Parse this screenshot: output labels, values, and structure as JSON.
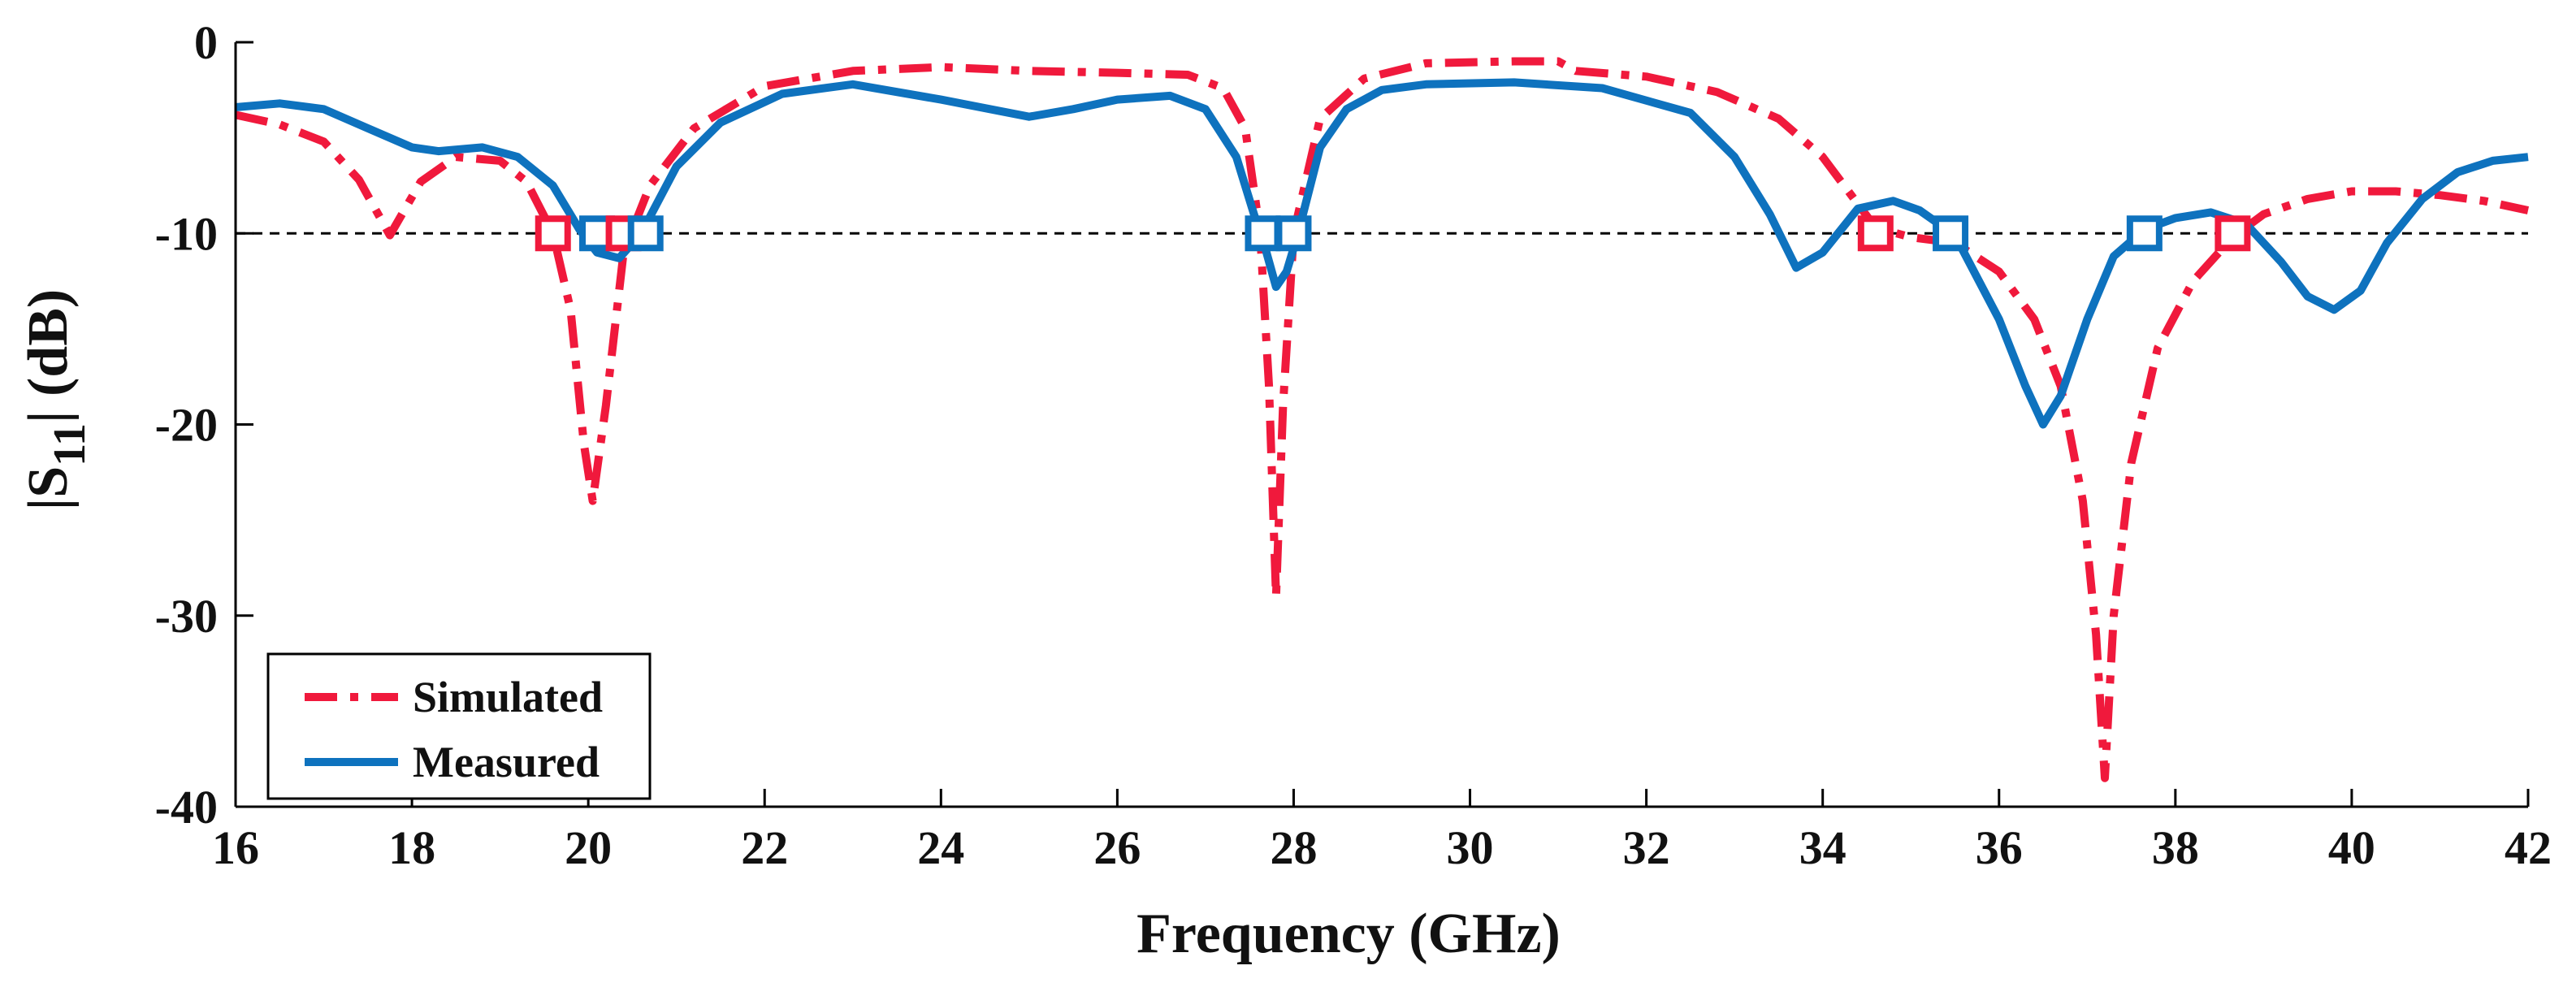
{
  "chart_data": {
    "type": "line",
    "xlabel": "Frequency (GHz)",
    "ylabel": {
      "pre": "|S",
      "sub": "11",
      "post": "| (dB)"
    },
    "xlim": [
      16,
      42
    ],
    "ylim": [
      -40,
      0
    ],
    "xticks": [
      16,
      18,
      20,
      22,
      24,
      26,
      28,
      30,
      32,
      34,
      36,
      38,
      40,
      42
    ],
    "yticks": [
      0,
      -10,
      -20,
      -30,
      -40
    ],
    "grid": false,
    "legend_position": "bottom-left",
    "reference_line": {
      "y": -10,
      "style": "dashed",
      "color": "#000000"
    },
    "series": [
      {
        "name": "Simulated",
        "color": "#F0193C",
        "style": "dash-dot",
        "x": [
          16,
          16.5,
          17,
          17.4,
          17.75,
          18.1,
          18.5,
          19,
          19.3,
          19.6,
          19.8,
          19.95,
          20.05,
          20.2,
          20.4,
          20.7,
          21.2,
          22,
          23,
          24,
          25,
          26,
          26.8,
          27.2,
          27.45,
          27.62,
          27.72,
          27.8,
          27.88,
          28,
          28.3,
          28.8,
          29.5,
          30.5,
          31,
          31.2,
          32,
          32.8,
          33.5,
          34,
          34.6,
          35,
          35.5,
          36,
          36.4,
          36.7,
          36.95,
          37.1,
          37.2,
          37.3,
          37.5,
          37.8,
          38.2,
          38.65,
          39,
          39.5,
          40,
          40.5,
          41,
          41.5,
          42
        ],
        "y": [
          -3.8,
          -4.3,
          -5.2,
          -7.2,
          -10.1,
          -7.3,
          -6,
          -6.2,
          -7.3,
          -10,
          -14,
          -21,
          -24,
          -19,
          -11,
          -7.5,
          -4.5,
          -2.3,
          -1.5,
          -1.3,
          -1.5,
          -1.6,
          -1.7,
          -2.4,
          -4.5,
          -10,
          -18,
          -29,
          -19,
          -10,
          -4,
          -1.9,
          -1.1,
          -1,
          -1,
          -1.5,
          -1.8,
          -2.6,
          -4,
          -6,
          -9.7,
          -10.2,
          -10.5,
          -12,
          -14.5,
          -18,
          -24,
          -31,
          -38.5,
          -30,
          -22,
          -16,
          -12.5,
          -10.2,
          -9,
          -8.2,
          -7.8,
          -7.8,
          -8,
          -8.3,
          -8.8
        ]
      },
      {
        "name": "Measured",
        "color": "#0E72BE",
        "style": "solid",
        "x": [
          16,
          16.5,
          17,
          17.5,
          18,
          18.3,
          18.8,
          19.2,
          19.6,
          19.9,
          20.1,
          20.35,
          20.6,
          21,
          21.5,
          22.2,
          23,
          24,
          25,
          25.5,
          26,
          26.6,
          27,
          27.35,
          27.55,
          27.68,
          27.8,
          27.92,
          28.05,
          28.3,
          28.6,
          29,
          29.5,
          30.5,
          31.5,
          32.5,
          33,
          33.4,
          33.7,
          34,
          34.4,
          34.8,
          35.1,
          35.5,
          36,
          36.3,
          36.5,
          36.7,
          37,
          37.3,
          37.65,
          38,
          38.4,
          38.8,
          39.2,
          39.5,
          39.8,
          40.1,
          40.4,
          40.8,
          41.2,
          41.6,
          42
        ],
        "y": [
          -3.4,
          -3.2,
          -3.5,
          -4.5,
          -5.5,
          -5.7,
          -5.5,
          -6,
          -7.5,
          -9.8,
          -11,
          -11.3,
          -10,
          -6.5,
          -4.2,
          -2.7,
          -2.2,
          -3,
          -3.9,
          -3.5,
          -3,
          -2.8,
          -3.5,
          -6,
          -9,
          -10.8,
          -12.8,
          -12,
          -10,
          -5.5,
          -3.5,
          -2.5,
          -2.2,
          -2.1,
          -2.4,
          -3.7,
          -6,
          -9,
          -11.8,
          -11,
          -8.7,
          -8.3,
          -8.8,
          -10.1,
          -14.5,
          -18,
          -20,
          -18.5,
          -14.5,
          -11.2,
          -9.8,
          -9.2,
          -8.9,
          -9.5,
          -11.5,
          -13.3,
          -14,
          -13,
          -10.5,
          -8.2,
          -6.8,
          -6.2,
          -6
        ]
      }
    ],
    "marker_points": [
      {
        "series": "Simulated",
        "x": 19.6,
        "y": -10
      },
      {
        "series": "Measured",
        "x": 20.1,
        "y": -10
      },
      {
        "series": "Simulated",
        "x": 20.4,
        "y": -10
      },
      {
        "series": "Measured",
        "x": 20.65,
        "y": -10
      },
      {
        "series": "Measured",
        "x": 27.65,
        "y": -10
      },
      {
        "series": "Measured",
        "x": 28.0,
        "y": -10
      },
      {
        "series": "Simulated",
        "x": 34.6,
        "y": -10
      },
      {
        "series": "Measured",
        "x": 35.45,
        "y": -10
      },
      {
        "series": "Measured",
        "x": 37.65,
        "y": -10
      },
      {
        "series": "Simulated",
        "x": 38.65,
        "y": -10
      }
    ]
  }
}
